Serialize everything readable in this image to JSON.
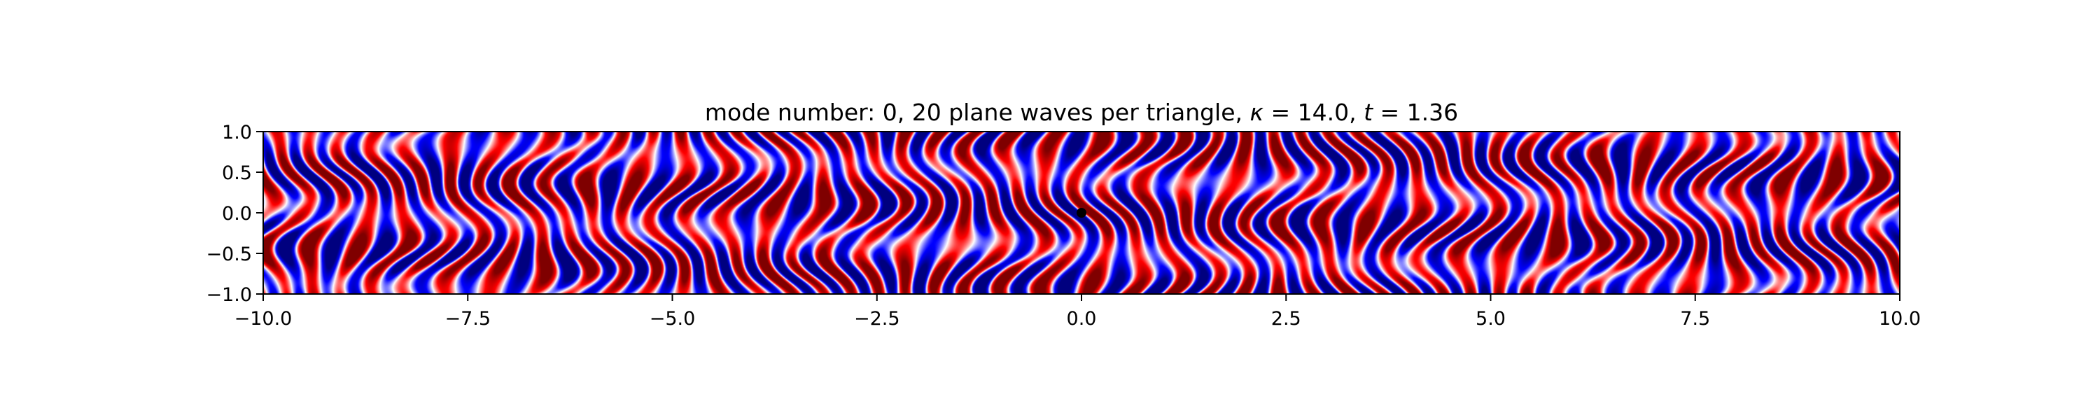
{
  "chart_data": {
    "type": "heatmap",
    "title": {
      "prefix": "mode number: 0, 20 plane waves per triangle, ",
      "kappa_symbol": "κ",
      "kappa_value": " = 14.0, ",
      "t_symbol": "t",
      "t_value": " = 1.36"
    },
    "xlabel": "",
    "ylabel": "",
    "xlim": [
      -10.0,
      10.0
    ],
    "ylim": [
      -1.0,
      1.0
    ],
    "x_ticks": [
      -10.0,
      -7.5,
      -5.0,
      -2.5,
      0.0,
      2.5,
      5.0,
      7.5,
      10.0
    ],
    "x_tick_labels": [
      "−10.0",
      "−7.5",
      "−5.0",
      "−2.5",
      "0.0",
      "2.5",
      "5.0",
      "7.5",
      "10.0"
    ],
    "y_ticks": [
      1.0,
      0.5,
      0.0,
      -0.5,
      -1.0
    ],
    "y_tick_labels": [
      "1.0",
      "0.5",
      "0.0",
      "−0.5",
      "−1.0"
    ],
    "colormap": "seismic",
    "colors": {
      "negative": "#00007f",
      "zero": "#ffffff",
      "positive": "#7f0000"
    },
    "source_point": {
      "x": 0.0,
      "y": 0.0
    },
    "wave": {
      "kappa": 14.0,
      "t": 1.36
    },
    "grid": false,
    "legend": "none"
  }
}
